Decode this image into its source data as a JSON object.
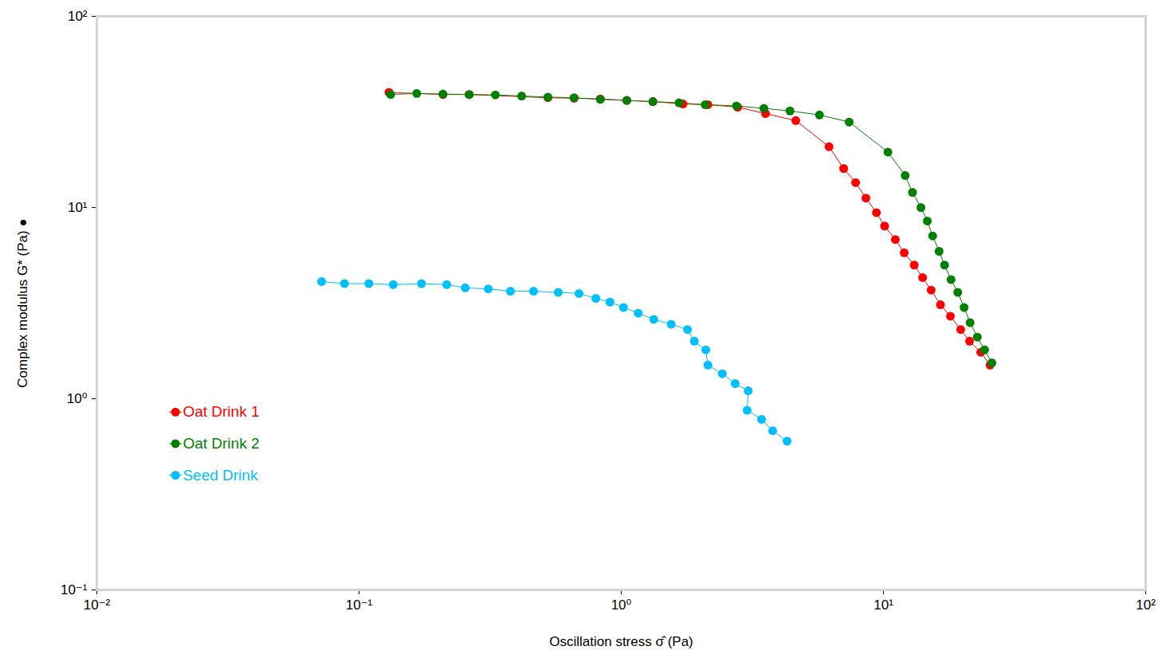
{
  "chart_data": {
    "type": "line",
    "marker": "circle",
    "log": true,
    "grid": false,
    "legend": "lower left",
    "x_label": "Oscillation stress σ̂ (Pa)",
    "y_label": "Complex modulus G* (Pa) ●",
    "xlim": [
      0.01,
      100
    ],
    "ylim": [
      0.1,
      100
    ],
    "xticks": [
      {
        "value": 0.01,
        "label": "10⁻²"
      },
      {
        "value": 0.1,
        "label": "10⁻¹"
      },
      {
        "value": 1,
        "label": "10⁰"
      },
      {
        "value": 10,
        "label": "10¹"
      },
      {
        "value": 100,
        "label": "10²"
      }
    ],
    "yticks": [
      {
        "value": 0.1,
        "label": "10⁻¹"
      },
      {
        "value": 1,
        "label": "10⁰"
      },
      {
        "value": 10,
        "label": "10¹"
      },
      {
        "value": 100,
        "label": "10²"
      }
    ],
    "series": [
      {
        "name": "Oat Drink 1",
        "color": "#ff0000",
        "x": [
          0.13,
          0.209,
          0.263,
          0.525,
          0.661,
          0.832,
          1.05,
          1.32,
          1.72,
          2.14,
          2.78,
          3.55,
          4.63,
          6.2,
          7.05,
          7.83,
          8.57,
          9.4,
          10.1,
          11.1,
          12.0,
          13.1,
          14.1,
          15.2,
          16.5,
          18.0,
          19.7,
          21.3,
          23.5,
          25.5
        ],
        "values": [
          40,
          39,
          39,
          37.5,
          37.3,
          37,
          36.3,
          35.8,
          34.8,
          34.5,
          33.5,
          31,
          28.5,
          20.8,
          16,
          13.5,
          11.2,
          9.4,
          8.0,
          6.8,
          5.8,
          5.0,
          4.3,
          3.7,
          3.1,
          2.7,
          2.3,
          2.0,
          1.75,
          1.5
        ]
      },
      {
        "name": "Oat Drink 2",
        "color": "#008000",
        "x": [
          0.132,
          0.166,
          0.209,
          0.263,
          0.331,
          0.417,
          0.525,
          0.661,
          0.832,
          1.05,
          1.32,
          1.66,
          2.09,
          2.75,
          3.5,
          4.4,
          5.7,
          7.4,
          10.4,
          12.1,
          12.9,
          13.9,
          14.7,
          15.4,
          16.3,
          17.1,
          18.1,
          19.2,
          20.3,
          21.4,
          22.8,
          24.3,
          25.9
        ],
        "values": [
          39,
          39.5,
          39.2,
          39,
          38.8,
          38.3,
          37.8,
          37.5,
          36.8,
          36.3,
          35.8,
          35.3,
          34.5,
          34,
          33,
          32,
          30.5,
          28,
          19.5,
          14.7,
          12.0,
          10,
          8.5,
          7.1,
          5.9,
          5.0,
          4.2,
          3.6,
          3.0,
          2.5,
          2.1,
          1.8,
          1.54
        ]
      },
      {
        "name": "Seed Drink",
        "color": "#00bfff",
        "x": [
          0.072,
          0.088,
          0.109,
          0.135,
          0.173,
          0.216,
          0.254,
          0.311,
          0.378,
          0.463,
          0.575,
          0.69,
          0.8,
          0.906,
          1.02,
          1.16,
          1.33,
          1.55,
          1.79,
          1.9,
          2.1,
          2.14,
          2.43,
          2.72,
          3.05,
          3.02,
          3.43,
          3.78,
          4.29
        ],
        "values": [
          4.1,
          4.0,
          4.0,
          3.95,
          4.0,
          3.95,
          3.8,
          3.75,
          3.65,
          3.65,
          3.6,
          3.55,
          3.35,
          3.2,
          3.0,
          2.8,
          2.6,
          2.45,
          2.3,
          2.0,
          1.8,
          1.5,
          1.35,
          1.2,
          1.1,
          0.87,
          0.78,
          0.68,
          0.6
        ]
      }
    ]
  }
}
